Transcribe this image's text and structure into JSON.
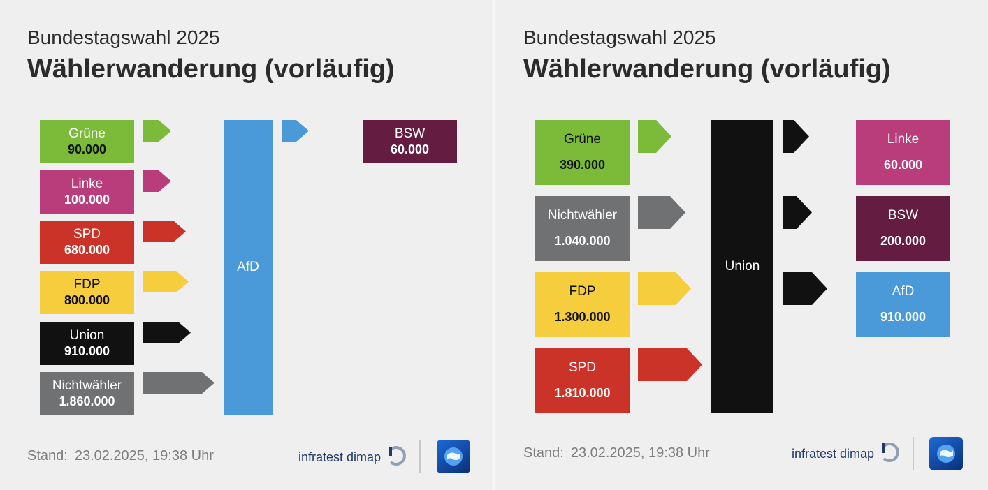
{
  "colors": {
    "gruene": "#7cba3a",
    "linke": "#b93d7b",
    "spd": "#cc3328",
    "fdp": "#f6cd3d",
    "union": "#111111",
    "nichtwaehler": "#6f7173",
    "afd": "#4a9ad9",
    "bsw": "#641c40",
    "background": "#efefef"
  },
  "left": {
    "subtitle": "Bundestagswahl 2025",
    "title": "Wählerwanderung (vorläufig)",
    "center": "AfD",
    "sources": [
      {
        "name": "Grüne",
        "value": "90.000",
        "color": "#7cba3a"
      },
      {
        "name": "Linke",
        "value": "100.000",
        "color": "#b93d7b"
      },
      {
        "name": "SPD",
        "value": "680.000",
        "color": "#cc3328"
      },
      {
        "name": "FDP",
        "value": "800.000",
        "color": "#f6cd3d",
        "dark": true
      },
      {
        "name": "Union",
        "value": "910.000",
        "color": "#111111"
      },
      {
        "name": "Nichtwähler",
        "value": "1.860.000",
        "color": "#6f7173"
      }
    ],
    "targets": [
      {
        "name": "BSW",
        "value": "60.000",
        "color": "#641c40"
      }
    ],
    "stand_label": "Stand:",
    "stand_date": "23.02.2025, 19:38 Uhr",
    "brand": "infratest dimap"
  },
  "right": {
    "subtitle": "Bundestagswahl 2025",
    "title": "Wählerwanderung (vorläufig)",
    "center": "Union",
    "sources": [
      {
        "name": "Grüne",
        "value": "390.000",
        "color": "#7cba3a"
      },
      {
        "name": "Nichtwähler",
        "value": "1.040.000",
        "color": "#6f7173"
      },
      {
        "name": "FDP",
        "value": "1.300.000",
        "color": "#f6cd3d",
        "dark": true
      },
      {
        "name": "SPD",
        "value": "1.810.000",
        "color": "#cc3328"
      }
    ],
    "targets": [
      {
        "name": "Linke",
        "value": "60.000",
        "color": "#b93d7b"
      },
      {
        "name": "BSW",
        "value": "200.000",
        "color": "#641c40"
      },
      {
        "name": "AfD",
        "value": "910.000",
        "color": "#4a9ad9"
      }
    ],
    "stand_label": "Stand:",
    "stand_date": "23.02.2025, 19:38 Uhr",
    "brand": "infratest dimap"
  }
}
